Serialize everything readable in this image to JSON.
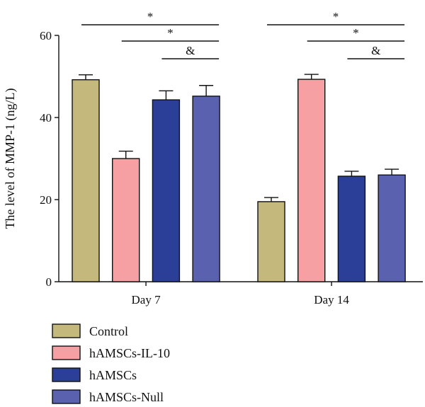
{
  "chart_data": {
    "type": "bar",
    "title": "",
    "xlabel": "",
    "ylabel": "The level of MMP-1 (ng/L)",
    "ylim": [
      0,
      60
    ],
    "yticks": [
      0,
      20,
      40,
      60
    ],
    "categories": [
      "Day 7",
      "Day 14"
    ],
    "series": [
      {
        "name": "Control",
        "color": "#c4b87c",
        "values": [
          49.2,
          19.5
        ],
        "errors": [
          1.2,
          1.0
        ]
      },
      {
        "name": "hAMSCs-IL-10",
        "color": "#f6a0a4",
        "values": [
          30.0,
          49.3
        ],
        "errors": [
          1.8,
          1.2
        ]
      },
      {
        "name": "hAMSCs",
        "color": "#2b3f98",
        "values": [
          44.3,
          25.7
        ],
        "errors": [
          2.2,
          1.2
        ]
      },
      {
        "name": "hAMSCs-Null",
        "color": "#5a62b0",
        "values": [
          45.2,
          26.0
        ],
        "errors": [
          2.6,
          1.4
        ]
      }
    ],
    "significance": [
      {
        "category": 0,
        "from": 0,
        "to": 3,
        "label": "*"
      },
      {
        "category": 0,
        "from": 1,
        "to": 3,
        "label": "*"
      },
      {
        "category": 0,
        "from": 2,
        "to": 3,
        "label": "&"
      },
      {
        "category": 1,
        "from": 0,
        "to": 3,
        "label": "*"
      },
      {
        "category": 1,
        "from": 1,
        "to": 3,
        "label": "*"
      },
      {
        "category": 1,
        "from": 2,
        "to": 3,
        "label": "&"
      }
    ],
    "legend_position": "bottom-left",
    "grid": false
  }
}
